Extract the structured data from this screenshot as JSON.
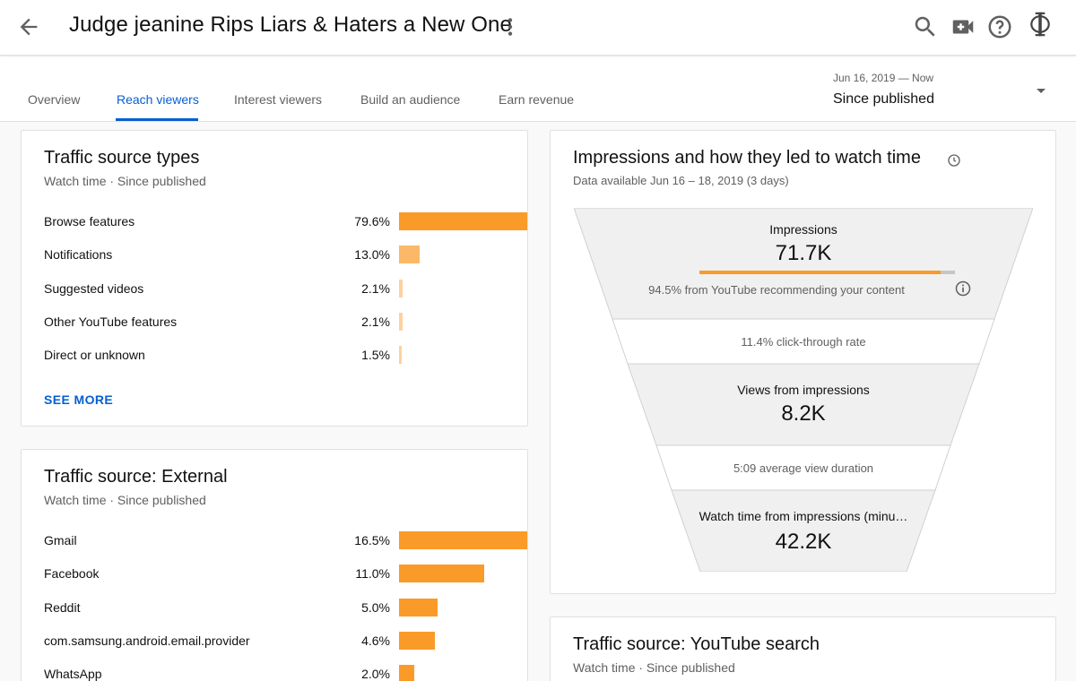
{
  "header": {
    "title": "Judge jeanine Rips Liars & Haters a New One",
    "icons": [
      "back-arrow-icon",
      "more-vert-icon",
      "search-icon",
      "create-video-icon",
      "help-icon",
      "channel-logo"
    ]
  },
  "tabs": [
    {
      "label": "Overview",
      "active": false
    },
    {
      "label": "Reach viewers",
      "active": true
    },
    {
      "label": "Interest viewers",
      "active": false
    },
    {
      "label": "Build an audience",
      "active": false
    },
    {
      "label": "Earn revenue",
      "active": false
    }
  ],
  "date_filter": {
    "range": "Jun 16, 2019 — Now",
    "label": "Since published"
  },
  "traffic_source_types": {
    "title": "Traffic source types",
    "subtitle": "Watch time · Since published",
    "rows": [
      {
        "label": "Browse features",
        "pct": "79.6%",
        "value": 79.6
      },
      {
        "label": "Notifications",
        "pct": "13.0%",
        "value": 13.0
      },
      {
        "label": "Suggested videos",
        "pct": "2.1%",
        "value": 2.1
      },
      {
        "label": "Other YouTube features",
        "pct": "2.1%",
        "value": 2.1
      },
      {
        "label": "Direct or unknown",
        "pct": "1.5%",
        "value": 1.5
      }
    ],
    "see_more": "SEE MORE"
  },
  "traffic_source_external": {
    "title": "Traffic source: External",
    "subtitle": "Watch time · Since published",
    "rows": [
      {
        "label": "Gmail",
        "pct": "16.5%",
        "value": 16.5
      },
      {
        "label": "Facebook",
        "pct": "11.0%",
        "value": 11.0
      },
      {
        "label": "Reddit",
        "pct": "5.0%",
        "value": 5.0
      },
      {
        "label": "com.samsung.android.email.provider",
        "pct": "4.6%",
        "value": 4.6
      },
      {
        "label": "WhatsApp",
        "pct": "2.0%",
        "value": 2.0
      }
    ]
  },
  "impressions": {
    "title": "Impressions and how they led to watch time",
    "subtitle": "Data available Jun 16 – 18, 2019 (3 days)",
    "impressions_label": "Impressions",
    "impressions_value": "71.7K",
    "recommend_fraction": 0.945,
    "recommend_note": "94.5% from YouTube recommending your content",
    "ctr_note": "11.4% click-through rate",
    "views_label": "Views from impressions",
    "views_value": "8.2K",
    "avd_note": "5:09 average view duration",
    "watch_label": "Watch time from impressions (minu…",
    "watch_value": "42.2K"
  },
  "traffic_source_search": {
    "title": "Traffic source: YouTube search",
    "subtitle": "Watch time · Since published"
  },
  "colors": {
    "accent": "#065fd4",
    "bar": "#fa9a28",
    "funnel_fill": "#f0f0f0"
  }
}
